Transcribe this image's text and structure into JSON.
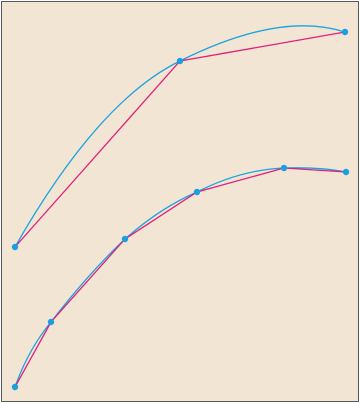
{
  "colors": {
    "background": "#f3e5d3",
    "border": "#5a5a5a",
    "curve": "#1aa3e0",
    "polyline": "#e0207a",
    "point": "#1a9fe0"
  },
  "upper_figure": {
    "description_of_parts": [
      "smooth-curve",
      "chord-polyline",
      "vertex-points"
    ],
    "point_count": 3
  },
  "lower_figure": {
    "description_of_parts": [
      "smooth-curve",
      "chord-polyline",
      "vertex-points"
    ],
    "point_count": 6
  }
}
